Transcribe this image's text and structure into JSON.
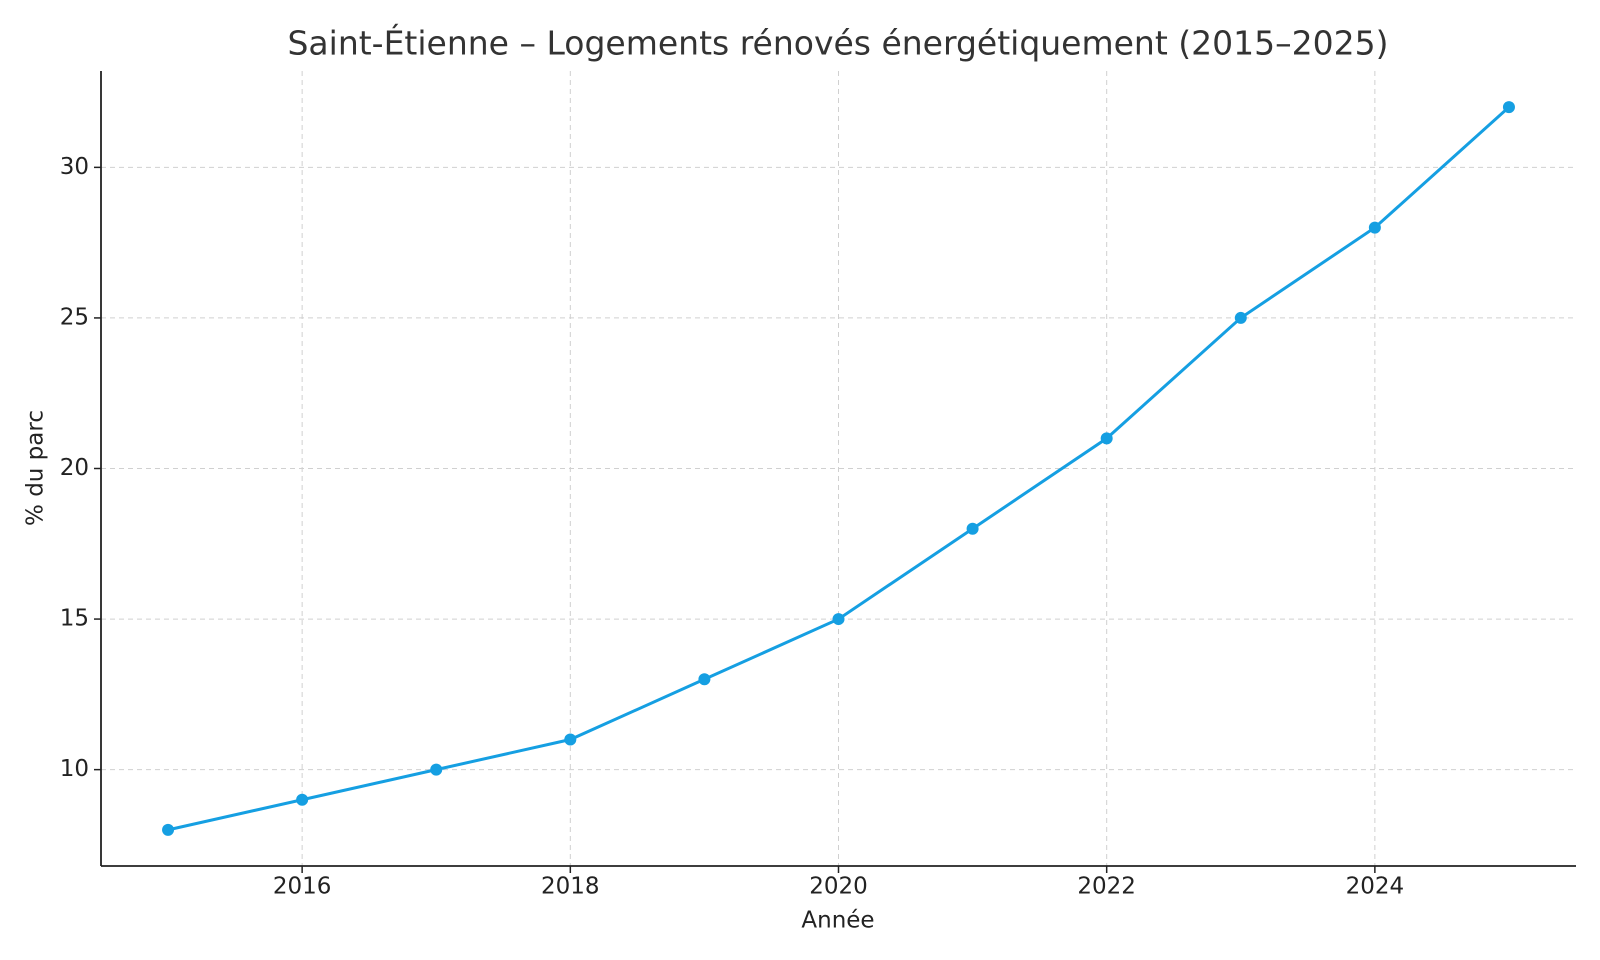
{
  "chart_data": {
    "type": "line",
    "title": "Saint-Étienne – Logements rénovés énergétiquement (2015–2025)",
    "x_label": "Année",
    "y_label": "% du parc",
    "x": [
      2015,
      2016,
      2017,
      2018,
      2019,
      2020,
      2021,
      2022,
      2023,
      2024,
      2025
    ],
    "series": [
      {
        "name": "% du parc",
        "color": "#159fe2",
        "values": [
          8,
          9,
          10,
          11,
          13,
          15,
          18,
          21,
          25,
          28,
          32
        ]
      }
    ],
    "xlim": [
      2014.5,
      2025.5
    ],
    "xticks": [
      2016,
      2018,
      2020,
      2022,
      2024
    ],
    "ylim": [
      6.8,
      33.2
    ],
    "yticks": [
      10,
      15,
      20,
      25,
      30
    ],
    "grid": true
  }
}
